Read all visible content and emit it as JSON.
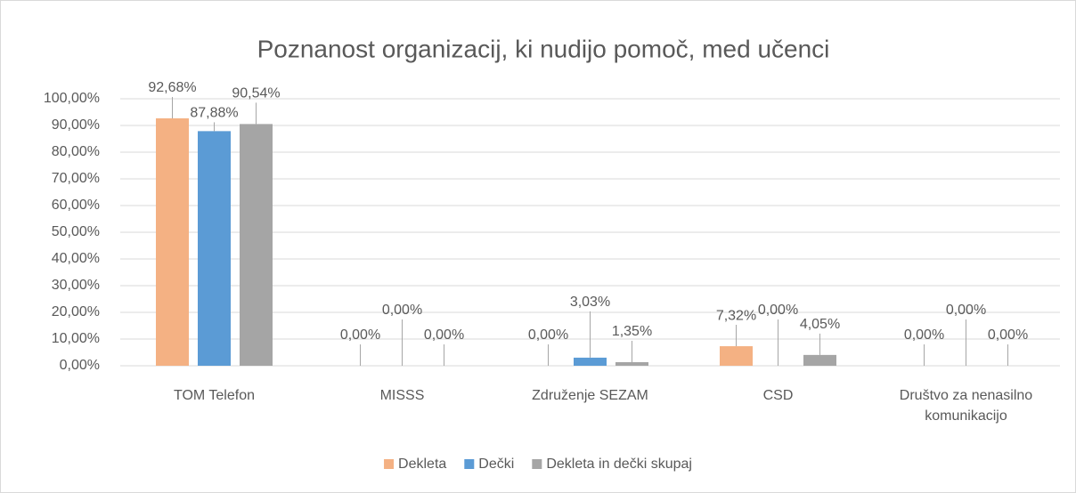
{
  "chart_data": {
    "type": "bar",
    "title": "Poznanost organizacij, ki nudijo pomoč, med učenci",
    "categories": [
      "TOM Telefon",
      "MISSS",
      "Združenje SEZAM",
      "CSD",
      "Društvo za nenasilno komunikacijo"
    ],
    "series": [
      {
        "name": "Dekleta",
        "color": "#f4b183",
        "values": [
          92.68,
          0,
          0,
          7.32,
          0
        ],
        "value_labels": [
          "92,68%",
          "0,00%",
          "0,00%",
          "7,32%",
          "0,00%"
        ]
      },
      {
        "name": "Dečki",
        "color": "#5b9bd5",
        "values": [
          87.88,
          0,
          3.03,
          0,
          0
        ],
        "value_labels": [
          "87,88%",
          "0,00%",
          "3,03%",
          "0,00%",
          "0,00%"
        ]
      },
      {
        "name": "Dekleta in dečki skupaj",
        "color": "#a5a5a5",
        "values": [
          90.54,
          0,
          1.35,
          4.05,
          0
        ],
        "value_labels": [
          "90,54%",
          "0,00%",
          "1,35%",
          "4,05%",
          "0,00%"
        ]
      }
    ],
    "ylim": [
      0,
      100
    ],
    "yticks": [
      {
        "value": 0,
        "label": "0,00%"
      },
      {
        "value": 10,
        "label": "10,00%"
      },
      {
        "value": 20,
        "label": "20,00%"
      },
      {
        "value": 30,
        "label": "30,00%"
      },
      {
        "value": 40,
        "label": "40,00%"
      },
      {
        "value": 50,
        "label": "50,00%"
      },
      {
        "value": 60,
        "label": "60,00%"
      },
      {
        "value": 70,
        "label": "70,00%"
      },
      {
        "value": 80,
        "label": "80,00%"
      },
      {
        "value": 90,
        "label": "90,00%"
      },
      {
        "value": 100,
        "label": "100,00%"
      }
    ],
    "grid": true,
    "legend": "bottom"
  }
}
